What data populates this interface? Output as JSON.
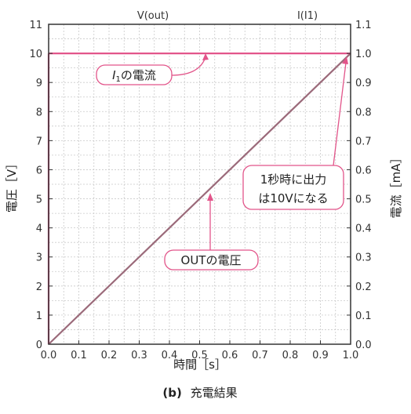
{
  "chart_data": {
    "type": "line",
    "top_labels": {
      "left": "V(out)",
      "right": "I(I1)"
    },
    "xlabel": "時間［s］",
    "ylabel_left": "電圧［V］",
    "ylabel_right": "電流［mA］",
    "caption_prefix": "(b)",
    "caption": "充電結果",
    "x_ticks": [
      "0.0",
      "0.1",
      "0.2",
      "0.3",
      "0.4",
      "0.5",
      "0.6",
      "0.7",
      "0.8",
      "0.9",
      "1.0"
    ],
    "y_left_ticks": [
      "0",
      "1",
      "2",
      "3",
      "4",
      "5",
      "6",
      "7",
      "8",
      "9",
      "10",
      "11"
    ],
    "y_right_ticks": [
      "0.0",
      "0.1",
      "0.2",
      "0.3",
      "0.4",
      "0.5",
      "0.6",
      "0.7",
      "0.8",
      "0.9",
      "1.0",
      "1.1"
    ],
    "xlim": [
      0,
      1.0
    ],
    "ylim_left": [
      0,
      11
    ],
    "ylim_right": [
      0,
      1.1
    ],
    "grid": true,
    "series": [
      {
        "axis": "left",
        "color": "#9b6a7a",
        "x": [
          0.0,
          1.0
        ],
        "y": [
          0,
          10
        ]
      },
      {
        "axis": "right",
        "color": "#e2558a",
        "x": [
          0.0,
          1.0
        ],
        "y": [
          1.0,
          1.0
        ]
      }
    ],
    "annotations": {
      "current": {
        "text": "の電流",
        "italic_prefix": "I",
        "subscript": "1"
      },
      "output_voltage": {
        "text": "OUTの電圧"
      },
      "note": {
        "lines": [
          "1秒時に出力",
          "は10Vになる"
        ]
      }
    }
  },
  "colors": {
    "voltage_line": "#9b6a7a",
    "current_line": "#e2558a",
    "frame": "#333333",
    "grid": "#c9c9c9",
    "annotation": "#e2558a"
  }
}
